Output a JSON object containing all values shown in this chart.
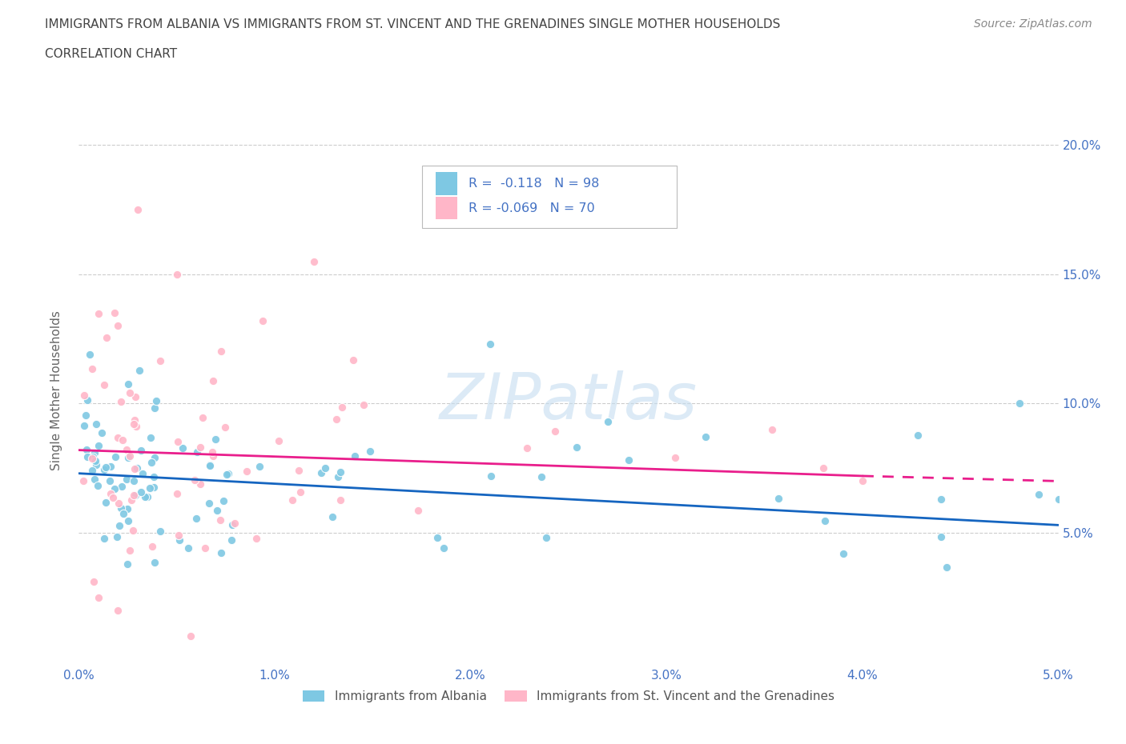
{
  "title_line1": "IMMIGRANTS FROM ALBANIA VS IMMIGRANTS FROM ST. VINCENT AND THE GRENADINES SINGLE MOTHER HOUSEHOLDS",
  "title_line2": "CORRELATION CHART",
  "source": "Source: ZipAtlas.com",
  "ylabel": "Single Mother Households",
  "legend1_label": "Immigrants from Albania",
  "legend2_label": "Immigrants from St. Vincent and the Grenadines",
  "r1": -0.118,
  "n1": 98,
  "r2": -0.069,
  "n2": 70,
  "color1": "#7ec8e3",
  "color2": "#ffb6c8",
  "line_color1": "#1565c0",
  "line_color2": "#e91e8c",
  "xlim": [
    0.0,
    0.05
  ],
  "ylim": [
    0.0,
    0.21
  ],
  "xticks": [
    0.0,
    0.01,
    0.02,
    0.03,
    0.04,
    0.05
  ],
  "yticks": [
    0.05,
    0.1,
    0.15,
    0.2
  ],
  "xticklabels": [
    "0.0%",
    "1.0%",
    "2.0%",
    "3.0%",
    "4.0%",
    "5.0%"
  ],
  "yticklabels": [
    "5.0%",
    "10.0%",
    "15.0%",
    "20.0%"
  ],
  "watermark": "ZIPatlas",
  "background_color": "#ffffff",
  "grid_color": "#cccccc",
  "title_color": "#555555",
  "axis_color": "#4472c4",
  "legend_box_color": "#e8e8e8"
}
